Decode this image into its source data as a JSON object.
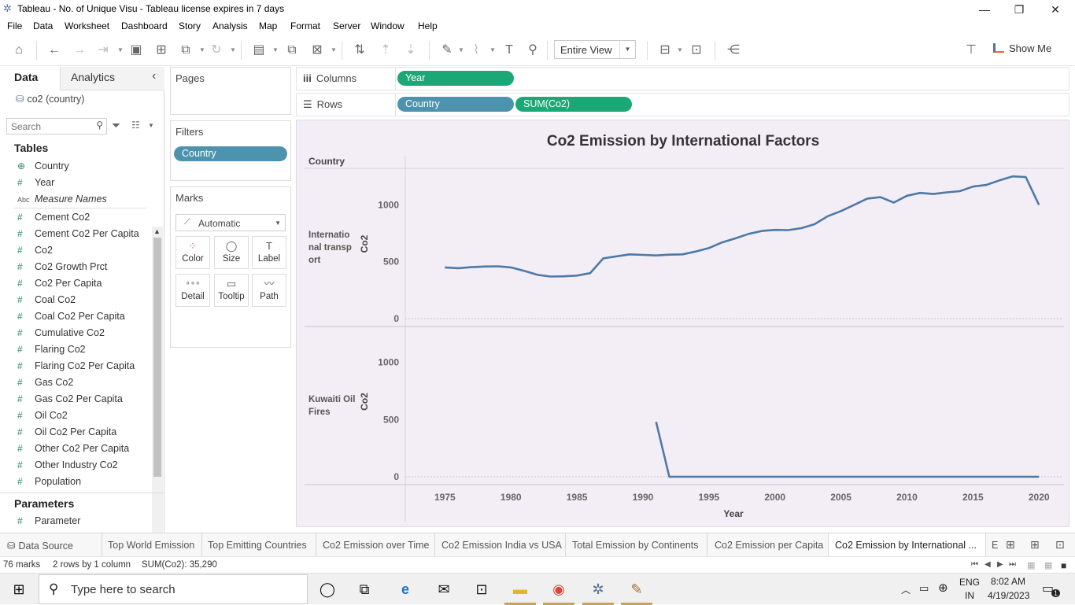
{
  "window": {
    "title": "Tableau - No. of Unique Visu - Tableau license expires in 7 days",
    "minimize": "—",
    "restore": "❐",
    "close": "✕"
  },
  "menu": [
    "File",
    "Data",
    "Worksheet",
    "Dashboard",
    "Story",
    "Analysis",
    "Map",
    "Format",
    "Server",
    "Window",
    "Help"
  ],
  "toolbar": {
    "view_select": "Entire View",
    "show_me": "Show Me"
  },
  "data_pane": {
    "tab_data": "Data",
    "tab_analytics": "Analytics",
    "collapse": "‹",
    "datasource": "co2 (country)",
    "search_placeholder": "Search",
    "tables_title": "Tables",
    "fields": [
      {
        "type": "⊕",
        "name": "Country"
      },
      {
        "type": "#",
        "name": "Year"
      },
      {
        "type": "Abc",
        "name": "Measure Names"
      },
      {
        "type": "#",
        "name": "Cement Co2"
      },
      {
        "type": "#",
        "name": "Cement Co2 Per Capita"
      },
      {
        "type": "#",
        "name": "Co2"
      },
      {
        "type": "#",
        "name": "Co2 Growth Prct"
      },
      {
        "type": "#",
        "name": "Co2 Per Capita"
      },
      {
        "type": "#",
        "name": "Coal Co2"
      },
      {
        "type": "#",
        "name": "Coal Co2 Per Capita"
      },
      {
        "type": "#",
        "name": "Cumulative Co2"
      },
      {
        "type": "#",
        "name": "Flaring Co2"
      },
      {
        "type": "#",
        "name": "Flaring Co2 Per Capita"
      },
      {
        "type": "#",
        "name": "Gas Co2"
      },
      {
        "type": "#",
        "name": "Gas Co2 Per Capita"
      },
      {
        "type": "#",
        "name": "Oil Co2"
      },
      {
        "type": "#",
        "name": "Oil Co2 Per Capita"
      },
      {
        "type": "#",
        "name": "Other Co2 Per Capita"
      },
      {
        "type": "#",
        "name": "Other Industry Co2"
      },
      {
        "type": "#",
        "name": "Population"
      }
    ],
    "parameters_title": "Parameters",
    "parameters": [
      {
        "type": "#",
        "name": "Parameter"
      }
    ]
  },
  "cards": {
    "pages": "Pages",
    "filters": "Filters",
    "filter_pill": "Country",
    "marks": "Marks",
    "mark_type": "Automatic",
    "mark_buttons": [
      {
        "icon": "⁘",
        "label": "Color"
      },
      {
        "icon": "◯",
        "label": "Size"
      },
      {
        "icon": "T",
        "label": "Label"
      },
      {
        "icon": "∘∘∘",
        "label": "Detail"
      },
      {
        "icon": "▭",
        "label": "Tooltip"
      },
      {
        "icon": "〰",
        "label": "Path"
      }
    ]
  },
  "shelves": {
    "columns_label": "Columns",
    "rows_label": "Rows",
    "columns_pills": [
      "Year"
    ],
    "rows_pills": [
      "Country",
      "SUM(Co2)"
    ]
  },
  "chart_data": {
    "type": "line",
    "title": "Co2 Emission by International Factors",
    "row_header": "Country",
    "xlabel": "Year",
    "ylabel": "Co2",
    "xlim": [
      1972,
      2021
    ],
    "ylim": [
      0,
      1300
    ],
    "x_ticks": [
      1975,
      1980,
      1985,
      1990,
      1995,
      2000,
      2005,
      2010,
      2015,
      2020
    ],
    "y_ticks": [
      0,
      500,
      1000
    ],
    "color": "#4e79a7",
    "series": [
      {
        "name": "International transport",
        "x": [
          1975,
          1976,
          1977,
          1978,
          1979,
          1980,
          1981,
          1982,
          1983,
          1984,
          1985,
          1986,
          1987,
          1988,
          1989,
          1990,
          1991,
          1992,
          1993,
          1994,
          1995,
          1996,
          1997,
          1998,
          1999,
          2000,
          2001,
          2002,
          2003,
          2004,
          2005,
          2006,
          2007,
          2008,
          2009,
          2010,
          2011,
          2012,
          2013,
          2014,
          2015,
          2016,
          2017,
          2018,
          2019,
          2020
        ],
        "y": [
          450,
          443,
          452,
          458,
          460,
          450,
          420,
          385,
          370,
          372,
          378,
          400,
          530,
          548,
          565,
          560,
          555,
          562,
          565,
          590,
          620,
          670,
          705,
          745,
          770,
          780,
          778,
          795,
          830,
          900,
          945,
          1000,
          1055,
          1068,
          1020,
          1080,
          1105,
          1095,
          1110,
          1120,
          1160,
          1175,
          1215,
          1250,
          1245,
          1000
        ]
      },
      {
        "name": "Kuwaiti Oil Fires",
        "x": [
          1991,
          1992,
          1993,
          1994,
          1995,
          1996,
          1997,
          1998,
          1999,
          2000,
          2001,
          2002,
          2003,
          2004,
          2005,
          2006,
          2007,
          2008,
          2009,
          2010,
          2011,
          2012,
          2013,
          2014,
          2015,
          2016,
          2017,
          2018,
          2019,
          2020
        ],
        "y": [
          480,
          0,
          0,
          0,
          0,
          0,
          0,
          0,
          0,
          0,
          0,
          0,
          0,
          0,
          0,
          0,
          0,
          0,
          0,
          0,
          0,
          0,
          0,
          0,
          0,
          0,
          0,
          0,
          0,
          0
        ]
      }
    ]
  },
  "row_labels": [
    "Internatio nal transp ort",
    "Kuwaiti Oil Fires"
  ],
  "sheet_tabs": {
    "datasource": "Data Source",
    "tabs": [
      "Top World Emission",
      "Top Emitting Countries",
      "Co2 Emission over Time",
      "Co2 Emission India vs USA",
      "Total Emission by Continents",
      "Co2 Emission per Capita",
      "Co2 Emission by International ...",
      "E"
    ]
  },
  "status": {
    "marks": "76 marks",
    "rows": "2 rows by 1 column",
    "sum": "SUM(Co2): 35,290"
  },
  "taskbar": {
    "search_placeholder": "Type here to search",
    "lang1": "ENG",
    "lang2": "IN",
    "time": "8:02 AM",
    "date": "4/19/2023",
    "notif": "1"
  }
}
